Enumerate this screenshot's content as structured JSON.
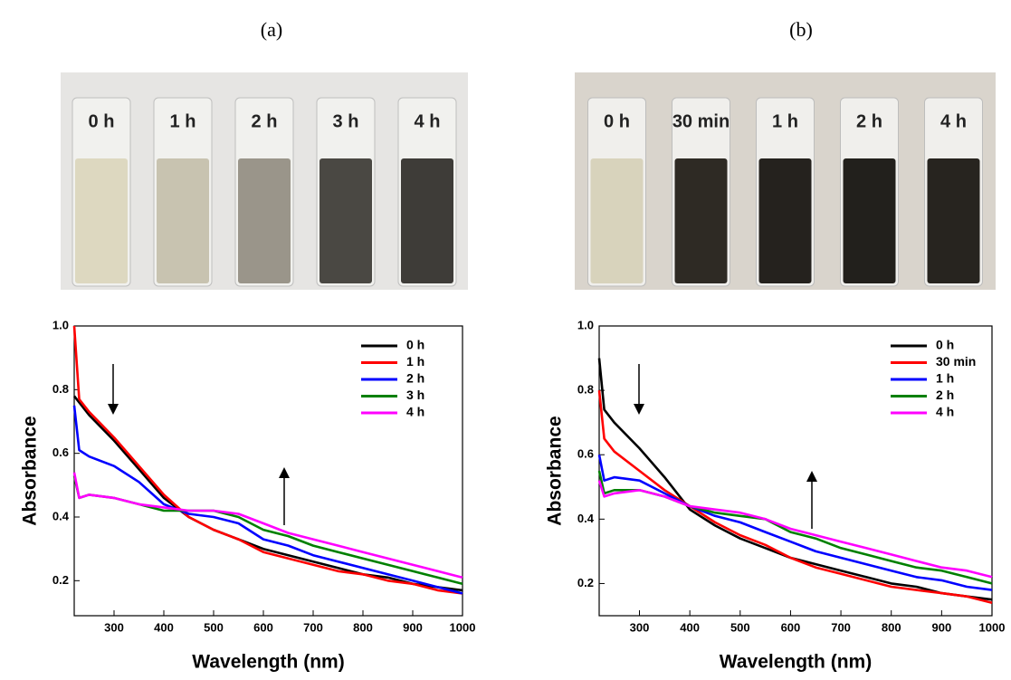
{
  "panels": [
    {
      "label": "(a)",
      "photo_labels": [
        "0 h",
        "1 h",
        "2 h",
        "3 h",
        "4 h"
      ]
    },
    {
      "label": "(b)",
      "photo_labels": [
        "0 h",
        "30 min",
        "1 h",
        "2 h",
        "4 h"
      ]
    }
  ],
  "chart_data": [
    {
      "type": "line",
      "xlabel": "Wavelength (nm)",
      "ylabel": "Absorbance",
      "x": [
        220,
        230,
        250,
        300,
        350,
        400,
        450,
        500,
        550,
        600,
        650,
        700,
        750,
        800,
        850,
        900,
        950,
        1000
      ],
      "series": [
        {
          "name": "0 h",
          "color": "#000000",
          "values": [
            0.78,
            0.76,
            0.72,
            0.64,
            0.55,
            0.46,
            0.4,
            0.36,
            0.33,
            0.3,
            0.28,
            0.26,
            0.24,
            0.22,
            0.21,
            0.19,
            0.18,
            0.17
          ]
        },
        {
          "name": "1 h",
          "color": "#ff0000",
          "values": [
            1.0,
            0.77,
            0.73,
            0.65,
            0.56,
            0.47,
            0.4,
            0.36,
            0.33,
            0.29,
            0.27,
            0.25,
            0.23,
            0.22,
            0.2,
            0.19,
            0.17,
            0.16
          ]
        },
        {
          "name": "2 h",
          "color": "#0000ff",
          "values": [
            0.75,
            0.61,
            0.59,
            0.56,
            0.51,
            0.44,
            0.41,
            0.4,
            0.38,
            0.33,
            0.31,
            0.28,
            0.26,
            0.24,
            0.22,
            0.2,
            0.18,
            0.16
          ]
        },
        {
          "name": "3 h",
          "color": "#008000",
          "values": [
            0.53,
            0.46,
            0.47,
            0.46,
            0.44,
            0.42,
            0.42,
            0.42,
            0.4,
            0.36,
            0.34,
            0.31,
            0.29,
            0.27,
            0.25,
            0.23,
            0.21,
            0.19
          ]
        },
        {
          "name": "4 h",
          "color": "#ff00ff",
          "values": [
            0.54,
            0.46,
            0.47,
            0.46,
            0.44,
            0.43,
            0.42,
            0.42,
            0.41,
            0.38,
            0.35,
            0.33,
            0.31,
            0.29,
            0.27,
            0.25,
            0.23,
            0.21
          ]
        }
      ],
      "xlim": [
        220,
        1000
      ],
      "ylim": [
        0.09,
        1.0
      ],
      "xticks": [
        300,
        400,
        500,
        600,
        700,
        800,
        900,
        1000
      ],
      "yticks": [
        0.2,
        0.4,
        0.6,
        0.8,
        {
          "value": 1,
          "label": "1.0"
        }
      ],
      "legend": "upper right"
    },
    {
      "type": "line",
      "xlabel": "Wavelength (nm)",
      "ylabel": "Absorbance",
      "x": [
        220,
        230,
        250,
        300,
        350,
        400,
        450,
        500,
        550,
        600,
        650,
        700,
        750,
        800,
        850,
        900,
        950,
        1000
      ],
      "series": [
        {
          "name": "0 h",
          "color": "#000000",
          "values": [
            0.9,
            0.74,
            0.7,
            0.62,
            0.53,
            0.43,
            0.38,
            0.34,
            0.31,
            0.28,
            0.26,
            0.24,
            0.22,
            0.2,
            0.19,
            0.17,
            0.16,
            0.15
          ]
        },
        {
          "name": "30 min",
          "color": "#ff0000",
          "values": [
            0.8,
            0.65,
            0.61,
            0.55,
            0.49,
            0.44,
            0.39,
            0.35,
            0.32,
            0.28,
            0.25,
            0.23,
            0.21,
            0.19,
            0.18,
            0.17,
            0.16,
            0.14
          ]
        },
        {
          "name": "1 h",
          "color": "#0000ff",
          "values": [
            0.6,
            0.52,
            0.53,
            0.52,
            0.48,
            0.44,
            0.41,
            0.39,
            0.36,
            0.33,
            0.3,
            0.28,
            0.26,
            0.24,
            0.22,
            0.21,
            0.19,
            0.18
          ]
        },
        {
          "name": "2 h",
          "color": "#008000",
          "values": [
            0.55,
            0.48,
            0.49,
            0.49,
            0.47,
            0.44,
            0.42,
            0.41,
            0.4,
            0.36,
            0.34,
            0.31,
            0.29,
            0.27,
            0.25,
            0.24,
            0.22,
            0.2
          ]
        },
        {
          "name": "4 h",
          "color": "#ff00ff",
          "values": [
            0.52,
            0.47,
            0.48,
            0.49,
            0.47,
            0.44,
            0.43,
            0.42,
            0.4,
            0.37,
            0.35,
            0.33,
            0.31,
            0.29,
            0.27,
            0.25,
            0.24,
            0.22
          ]
        }
      ],
      "xlim": [
        220,
        1000
      ],
      "ylim": [
        0.1,
        1.0
      ],
      "xticks": [
        300,
        400,
        500,
        600,
        700,
        800,
        900,
        1000
      ],
      "yticks": [
        0.2,
        0.4,
        0.6,
        0.8,
        {
          "value": 1,
          "label": "1.0"
        }
      ],
      "legend": "upper right"
    }
  ]
}
